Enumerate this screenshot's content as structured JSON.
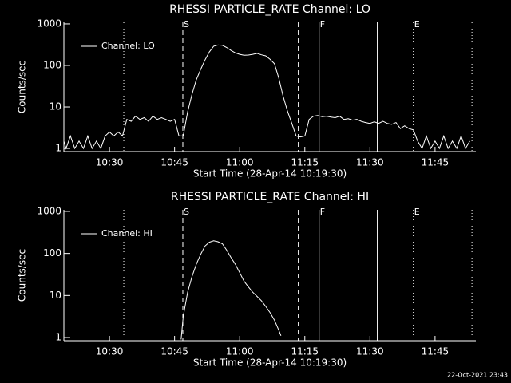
{
  "chart_data": [
    {
      "type": "line",
      "title": "RHESSI PARTICLE_RATE Channel: LO",
      "xlabel": "Start Time (28-Apr-14 10:19:30)",
      "ylabel": "Counts/sec",
      "log_y": true,
      "xlim": [
        619.5,
        714.4
      ],
      "ylim": [
        0.84,
        1090
      ],
      "xticks": [
        {
          "value": 630,
          "label": "10:30"
        },
        {
          "value": 645,
          "label": "10:45"
        },
        {
          "value": 660,
          "label": "11:00"
        },
        {
          "value": 675,
          "label": "11:15"
        },
        {
          "value": 690,
          "label": "11:30"
        },
        {
          "value": 705,
          "label": "11:45"
        }
      ],
      "yticks": [
        1,
        10,
        100,
        1000
      ],
      "markers": [
        {
          "x": 633.3,
          "style": "dotted"
        },
        {
          "x": 646.9,
          "style": "dashed",
          "label": "S"
        },
        {
          "x": 673.5,
          "style": "dashed"
        },
        {
          "x": 678.3,
          "style": "solid",
          "label": "F"
        },
        {
          "x": 691.7,
          "style": "solid"
        },
        {
          "x": 700,
          "style": "dotted",
          "label": "E"
        },
        {
          "x": 713.5,
          "style": "dotted"
        }
      ],
      "series": [
        {
          "name": "Channel: LO",
          "color": "#ffffff",
          "x": [
            619.5,
            620,
            621,
            622,
            623,
            624,
            625,
            626,
            627,
            628,
            629,
            630,
            631,
            632,
            633,
            634,
            635,
            636,
            637,
            638,
            639,
            640,
            641,
            642,
            643,
            644,
            645,
            646,
            647,
            648,
            649,
            650,
            651,
            652,
            653,
            654,
            655,
            656,
            657,
            658,
            659,
            660,
            661,
            662,
            663,
            664,
            665,
            666,
            667,
            668,
            669,
            670,
            671,
            672,
            673,
            674,
            675,
            676,
            677,
            678,
            679,
            680,
            681,
            682,
            683,
            684,
            685,
            686,
            687,
            688,
            689,
            690,
            691,
            692,
            693,
            694,
            695,
            696,
            697,
            698,
            699,
            700,
            701,
            702,
            703,
            704,
            705,
            706,
            707,
            708,
            709,
            710,
            711,
            712,
            713
          ],
          "values": [
            1.5,
            1,
            2,
            1,
            1.5,
            1,
            2,
            1,
            1.5,
            1,
            2,
            2.5,
            2,
            2.5,
            2,
            5,
            4.5,
            6,
            5,
            5.5,
            4.5,
            6,
            5,
            5.5,
            5,
            4.5,
            5,
            2,
            2,
            7.6,
            20,
            45,
            80,
            135,
            210,
            290,
            310,
            305,
            270,
            230,
            200,
            185,
            175,
            178,
            185,
            195,
            180,
            170,
            140,
            110,
            50,
            18,
            8,
            4,
            2,
            1.9,
            2,
            5,
            6,
            6.2,
            5.8,
            6,
            5.7,
            5.5,
            6,
            5,
            5.2,
            4.8,
            5,
            4.5,
            4.2,
            4,
            4.4,
            4,
            4.5,
            4,
            3.8,
            4.2,
            3,
            3.5,
            3,
            2.8,
            1.5,
            1,
            2,
            1,
            1.5,
            1,
            2,
            1,
            1.5,
            1,
            2,
            1,
            1.5
          ]
        }
      ]
    },
    {
      "type": "line",
      "title": "RHESSI PARTICLE_RATE Channel: HI",
      "xlabel": "Start Time (28-Apr-14 10:19:30)",
      "ylabel": "Counts/sec",
      "log_y": true,
      "xlim": [
        619.5,
        714.4
      ],
      "ylim": [
        0.84,
        1090
      ],
      "xticks": [
        {
          "value": 630,
          "label": "10:30"
        },
        {
          "value": 645,
          "label": "10:45"
        },
        {
          "value": 660,
          "label": "11:00"
        },
        {
          "value": 675,
          "label": "11:15"
        },
        {
          "value": 690,
          "label": "11:30"
        },
        {
          "value": 705,
          "label": "11:45"
        }
      ],
      "yticks": [
        1,
        10,
        100,
        1000
      ],
      "markers": [
        {
          "x": 633.3,
          "style": "dotted"
        },
        {
          "x": 646.9,
          "style": "dashed",
          "label": "S"
        },
        {
          "x": 673.5,
          "style": "dashed"
        },
        {
          "x": 678.3,
          "style": "solid",
          "label": "F"
        },
        {
          "x": 691.7,
          "style": "solid"
        },
        {
          "x": 700,
          "style": "dotted",
          "label": "E"
        },
        {
          "x": 713.5,
          "style": "dotted"
        }
      ],
      "series": [
        {
          "name": "Channel: HI",
          "color": "#ffffff",
          "x": [
            646.5,
            647,
            648,
            649,
            650,
            651,
            652,
            653,
            654,
            655,
            656,
            657,
            658,
            659,
            660,
            661,
            662,
            663,
            664,
            665,
            666,
            667,
            668,
            669,
            669.5
          ],
          "values": [
            0.9,
            3.2,
            12,
            28,
            55,
            95,
            150,
            185,
            200,
            190,
            170,
            120,
            80,
            55,
            35,
            22,
            16,
            12,
            9.5,
            7.5,
            5.5,
            3.9,
            2.6,
            1.5,
            1.1
          ]
        }
      ]
    }
  ],
  "footer": "22-Oct-2021 23:43"
}
